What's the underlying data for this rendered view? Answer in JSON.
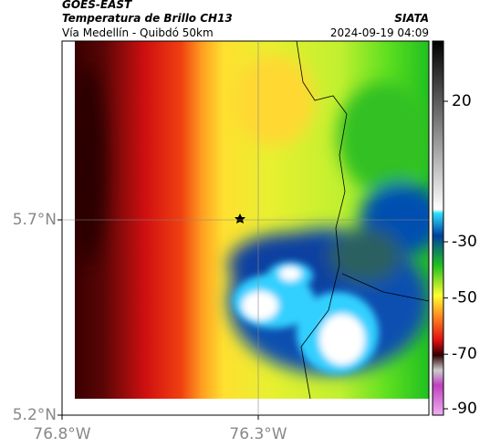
{
  "header": {
    "title": "GOES-EAST",
    "subtitle": "Temperatura de Brillo CH13",
    "location": "Vía Medellín - Quibdó 50km",
    "source": "SIATA",
    "timestamp": "2024-09-19 04:09"
  },
  "map": {
    "lat_ticks": [
      {
        "value": 5.7,
        "label": "5.7°N"
      },
      {
        "value": 5.2,
        "label": "5.2°N"
      }
    ],
    "lon_ticks": [
      {
        "value": -76.8,
        "label": "76.8°W"
      },
      {
        "value": -76.3,
        "label": "76.3°W"
      }
    ]
  },
  "colorbar": {
    "ticks": [
      20,
      -30,
      -50,
      -70,
      -90
    ]
  }
}
